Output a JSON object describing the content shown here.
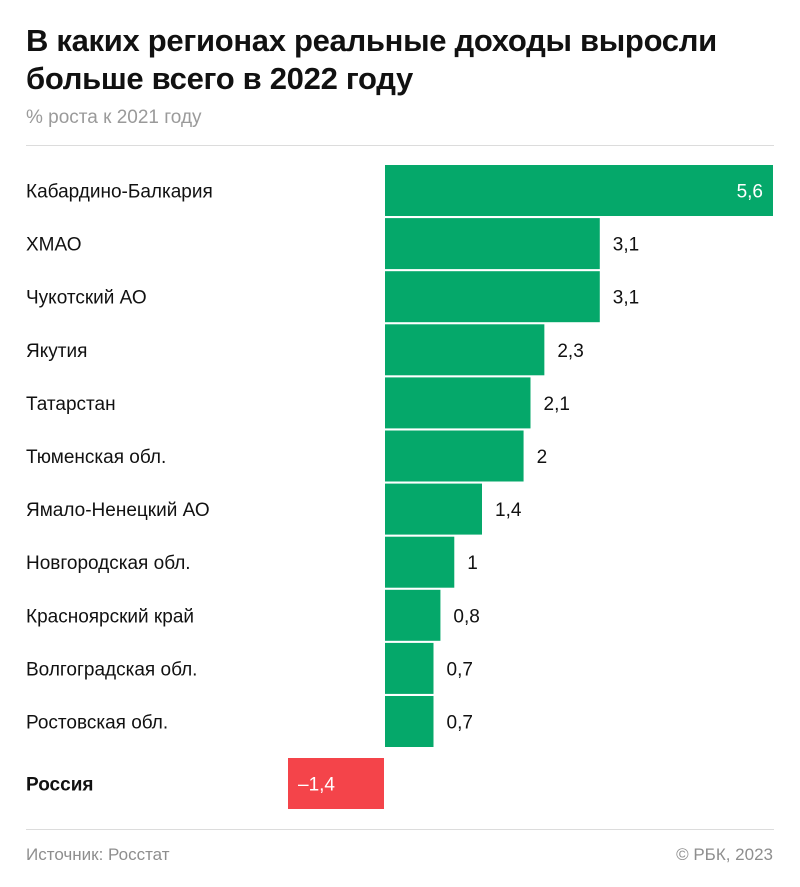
{
  "title": "В каких регионах реальные доходы выросли больше всего в 2022 году",
  "subtitle": "% роста к 2021 году",
  "footer": {
    "source": "Источник: Росстат",
    "credit": "© РБК, 2023"
  },
  "colors": {
    "positive": "#05a86a",
    "negative": "#f4444a"
  },
  "chart_data": {
    "type": "bar",
    "orientation": "horizontal",
    "categories": [
      "Кабардино-Балкария",
      "ХМАО",
      "Чукотский АО",
      "Якутия",
      "Татарстан",
      "Тюменская обл.",
      "Ямало-Ненецкий АО",
      "Новгородская обл.",
      "Красноярский край",
      "Волгоградская обл.",
      "Ростовская обл."
    ],
    "values": [
      5.6,
      3.1,
      3.1,
      2.3,
      2.1,
      2,
      1.4,
      1,
      0.8,
      0.7,
      0.7
    ],
    "labels": [
      "5,6",
      "3,1",
      "3,1",
      "2,3",
      "2,1",
      "2",
      "1,4",
      "1",
      "0,8",
      "0,7",
      "0,7"
    ],
    "total": {
      "category": "Россия",
      "value": -1.4,
      "label": "–1,4"
    }
  }
}
